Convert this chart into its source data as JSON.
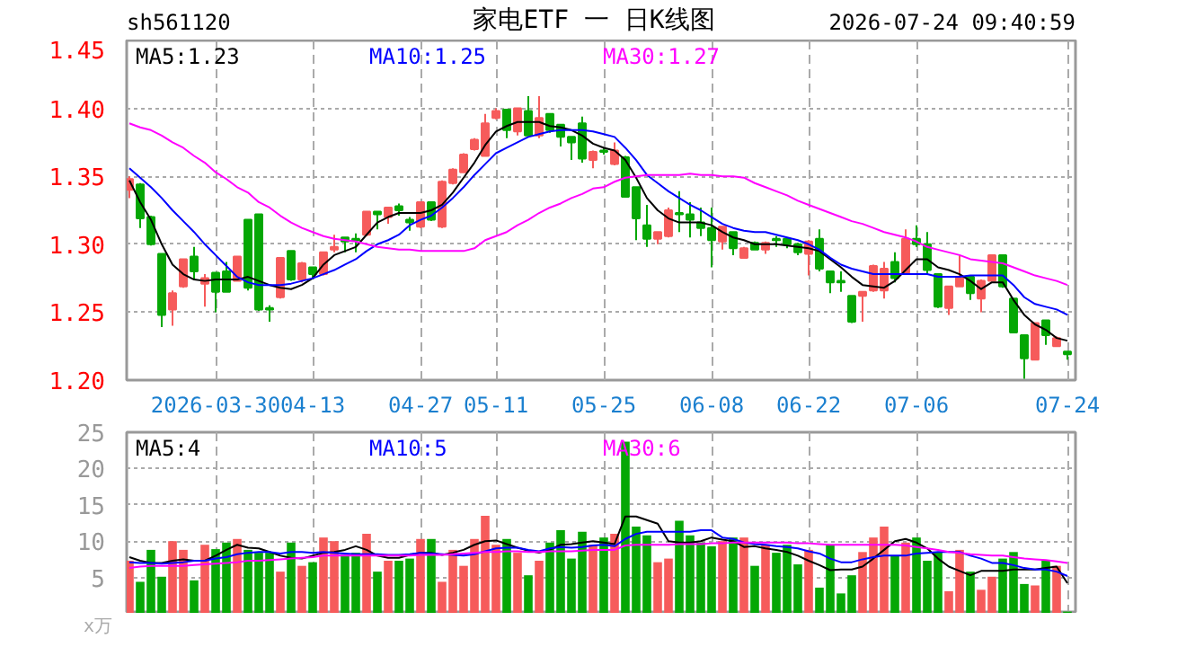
{
  "chart_data": [
    {
      "type": "candlestick",
      "title": "家电ETF 一 日K线图",
      "annotations": [
        "sh561120",
        "2026-07-24 09:40:59"
      ],
      "categories": [
        null,
        null,
        null,
        null,
        null,
        null,
        null,
        null,
        "2026-03-30",
        null,
        null,
        null,
        null,
        null,
        null,
        null,
        null,
        "04-13",
        null,
        null,
        null,
        null,
        null,
        null,
        null,
        null,
        null,
        "04-27",
        null,
        null,
        null,
        null,
        null,
        null,
        "05-11",
        null,
        null,
        null,
        null,
        null,
        null,
        null,
        null,
        null,
        "05-25",
        null,
        null,
        null,
        null,
        null,
        null,
        null,
        null,
        null,
        "06-08",
        null,
        null,
        null,
        null,
        null,
        null,
        null,
        null,
        "06-22",
        null,
        null,
        null,
        null,
        null,
        null,
        null,
        null,
        null,
        "07-06",
        null,
        null,
        null,
        null,
        null,
        null,
        null,
        null,
        null,
        null,
        null,
        null,
        null,
        "07-24"
      ],
      "ohlc": [
        [
          1.34,
          1.35,
          1.334,
          1.348
        ],
        [
          1.344,
          1.345,
          1.312,
          1.319
        ],
        [
          1.32,
          1.321,
          1.299,
          1.3
        ],
        [
          1.293,
          1.293,
          1.239,
          1.248
        ],
        [
          1.252,
          1.266,
          1.24,
          1.264
        ],
        [
          1.269,
          1.289,
          1.268,
          1.289
        ],
        [
          1.291,
          1.298,
          1.274,
          1.28
        ],
        [
          1.271,
          1.278,
          1.254,
          1.275
        ],
        [
          1.279,
          1.279,
          1.25,
          1.265
        ],
        [
          1.28,
          1.287,
          1.265,
          1.265
        ],
        [
          1.273,
          1.291,
          1.273,
          1.291
        ],
        [
          1.318,
          1.318,
          1.266,
          1.268
        ],
        [
          1.322,
          1.322,
          1.251,
          1.252
        ],
        [
          1.253,
          1.255,
          1.243,
          1.252
        ],
        [
          1.261,
          1.29,
          1.26,
          1.29
        ],
        [
          1.295,
          1.295,
          1.273,
          1.274
        ],
        [
          1.274,
          1.287,
          1.272,
          1.286
        ],
        [
          1.283,
          1.283,
          1.274,
          1.278
        ],
        [
          1.278,
          1.294,
          1.277,
          1.294
        ],
        [
          1.296,
          1.307,
          1.294,
          1.298
        ],
        [
          1.305,
          1.305,
          1.294,
          1.302
        ],
        [
          1.304,
          1.308,
          1.294,
          1.303
        ],
        [
          1.307,
          1.324,
          1.306,
          1.324
        ],
        [
          1.324,
          1.324,
          1.311,
          1.322
        ],
        [
          1.32,
          1.327,
          1.315,
          1.327
        ],
        [
          1.328,
          1.33,
          1.321,
          1.325
        ],
        [
          1.318,
          1.32,
          1.31,
          1.316
        ],
        [
          1.313,
          1.331,
          1.312,
          1.331
        ],
        [
          1.331,
          1.331,
          1.317,
          1.318
        ],
        [
          1.313,
          1.347,
          1.312,
          1.346
        ],
        [
          1.345,
          1.356,
          1.344,
          1.355
        ],
        [
          1.353,
          1.367,
          1.353,
          1.366
        ],
        [
          1.37,
          1.378,
          1.369,
          1.377
        ],
        [
          1.365,
          1.396,
          1.365,
          1.389
        ],
        [
          1.393,
          1.4,
          1.392,
          1.398
        ],
        [
          1.399,
          1.399,
          1.378,
          1.384
        ],
        [
          1.383,
          1.4,
          1.38,
          1.4
        ],
        [
          1.398,
          1.409,
          1.38,
          1.38
        ],
        [
          1.38,
          1.409,
          1.378,
          1.393
        ],
        [
          1.396,
          1.396,
          1.382,
          1.384
        ],
        [
          1.388,
          1.388,
          1.372,
          1.379
        ],
        [
          1.379,
          1.379,
          1.362,
          1.375
        ],
        [
          1.389,
          1.394,
          1.36,
          1.363
        ],
        [
          1.362,
          1.369,
          1.356,
          1.368
        ],
        [
          1.369,
          1.371,
          1.366,
          1.368
        ],
        [
          1.359,
          1.375,
          1.358,
          1.369
        ],
        [
          1.364,
          1.365,
          1.335,
          1.335
        ],
        [
          1.342,
          1.342,
          1.303,
          1.319
        ],
        [
          1.314,
          1.329,
          1.298,
          1.304
        ],
        [
          1.304,
          1.309,
          1.3,
          1.309
        ],
        [
          1.306,
          1.327,
          1.305,
          1.325
        ],
        [
          1.323,
          1.339,
          1.309,
          1.322
        ],
        [
          1.322,
          1.331,
          1.305,
          1.318
        ],
        [
          1.316,
          1.327,
          1.306,
          1.312
        ],
        [
          1.312,
          1.327,
          1.283,
          1.303
        ],
        [
          1.302,
          1.313,
          1.296,
          1.313
        ],
        [
          1.309,
          1.309,
          1.292,
          1.297
        ],
        [
          1.29,
          1.298,
          1.29,
          1.297
        ],
        [
          1.301,
          1.302,
          1.296,
          1.296
        ],
        [
          1.296,
          1.302,
          1.293,
          1.301
        ],
        [
          1.304,
          1.306,
          1.298,
          1.303
        ],
        [
          1.304,
          1.305,
          1.297,
          1.3
        ],
        [
          1.3,
          1.301,
          1.292,
          1.294
        ],
        [
          1.293,
          1.303,
          1.277,
          1.302
        ],
        [
          1.304,
          1.311,
          1.28,
          1.282
        ],
        [
          1.28,
          1.28,
          1.264,
          1.272
        ],
        [
          1.273,
          1.28,
          1.265,
          1.272
        ],
        [
          1.262,
          1.262,
          1.242,
          1.243
        ],
        [
          1.262,
          1.265,
          1.243,
          1.265
        ],
        [
          1.266,
          1.285,
          1.265,
          1.284
        ],
        [
          1.266,
          1.287,
          1.26,
          1.282
        ],
        [
          1.287,
          1.294,
          1.272,
          1.275
        ],
        [
          1.279,
          1.311,
          1.279,
          1.304
        ],
        [
          1.304,
          1.314,
          1.298,
          1.3
        ],
        [
          1.3,
          1.309,
          1.278,
          1.281
        ],
        [
          1.278,
          1.278,
          1.253,
          1.254
        ],
        [
          1.253,
          1.269,
          1.248,
          1.269
        ],
        [
          1.269,
          1.292,
          1.269,
          1.276
        ],
        [
          1.276,
          1.276,
          1.259,
          1.264
        ],
        [
          1.26,
          1.274,
          1.25,
          1.273
        ],
        [
          1.273,
          1.292,
          1.273,
          1.292
        ],
        [
          1.292,
          1.292,
          1.268,
          1.269
        ],
        [
          1.26,
          1.26,
          1.235,
          1.235
        ],
        [
          1.233,
          1.233,
          1.201,
          1.216
        ],
        [
          1.215,
          1.242,
          1.215,
          1.242
        ],
        [
          1.244,
          1.244,
          1.226,
          1.233
        ],
        [
          1.225,
          1.232,
          1.225,
          1.231
        ],
        [
          1.221,
          1.221,
          1.215,
          1.219
        ]
      ],
      "colors": [
        "#f65b5b",
        "#05a705",
        "#05a705",
        "#05a705",
        "#f65b5b",
        "#f65b5b",
        "#05a705",
        "#f65b5b",
        "#05a705",
        "#05a705",
        "#f65b5b",
        "#05a705",
        "#05a705",
        "#05a705",
        "#f65b5b",
        "#05a705",
        "#f65b5b",
        "#05a705",
        "#f65b5b",
        "#f65b5b",
        "#05a705",
        "#05a705",
        "#f65b5b",
        "#05a705",
        "#f65b5b",
        "#05a705",
        "#05a705",
        "#f65b5b",
        "#05a705",
        "#f65b5b",
        "#f65b5b",
        "#f65b5b",
        "#f65b5b",
        "#f65b5b",
        "#f65b5b",
        "#05a705",
        "#f65b5b",
        "#05a705",
        "#f65b5b",
        "#05a705",
        "#05a705",
        "#05a705",
        "#05a705",
        "#f65b5b",
        "#05a705",
        "#f65b5b",
        "#05a705",
        "#05a705",
        "#05a705",
        "#f65b5b",
        "#f65b5b",
        "#05a705",
        "#05a705",
        "#05a705",
        "#05a705",
        "#f65b5b",
        "#05a705",
        "#f65b5b",
        "#05a705",
        "#f65b5b",
        "#05a705",
        "#05a705",
        "#05a705",
        "#f65b5b",
        "#05a705",
        "#05a705",
        "#05a705",
        "#05a705",
        "#f65b5b",
        "#f65b5b",
        "#f65b5b",
        "#05a705",
        "#f65b5b",
        "#05a705",
        "#05a705",
        "#05a705",
        "#f65b5b",
        "#f65b5b",
        "#05a705",
        "#f65b5b",
        "#f65b5b",
        "#05a705",
        "#05a705",
        "#05a705",
        "#f65b5b",
        "#05a705",
        "#f65b5b",
        "#05a705"
      ],
      "series": [
        {
          "type": "line",
          "name": "MA5:1.23",
          "color": "#000000",
          "values": [
            1.347,
            1.331,
            1.318,
            1.3,
            1.285,
            1.278,
            1.274,
            1.273,
            1.274,
            1.274,
            1.274,
            1.276,
            1.273,
            1.27,
            1.268,
            1.267,
            1.27,
            1.275,
            1.285,
            1.292,
            1.295,
            1.298,
            1.307,
            1.316,
            1.32,
            1.323,
            1.323,
            1.323,
            1.325,
            1.329,
            1.338,
            1.349,
            1.36,
            1.373,
            1.383,
            1.387,
            1.39,
            1.39,
            1.39,
            1.387,
            1.386,
            1.384,
            1.38,
            1.374,
            1.371,
            1.369,
            1.362,
            1.349,
            1.334,
            1.325,
            1.319,
            1.316,
            1.316,
            1.316,
            1.314,
            1.309,
            1.305,
            1.303,
            1.3,
            1.3,
            1.3,
            1.299,
            1.298,
            1.297,
            1.295,
            1.289,
            1.283,
            1.276,
            1.27,
            1.269,
            1.268,
            1.273,
            1.281,
            1.289,
            1.289,
            1.283,
            1.281,
            1.278,
            1.273,
            1.267,
            1.272,
            1.272,
            1.259,
            1.248,
            1.241,
            1.237,
            1.231,
            1.229
          ]
        },
        {
          "type": "line",
          "name": "MA10:1.25",
          "color": "#0000ff",
          "values": [
            1.356,
            1.349,
            1.342,
            1.334,
            1.325,
            1.317,
            1.309,
            1.3,
            1.292,
            1.284,
            1.276,
            1.272,
            1.27,
            1.27,
            1.27,
            1.271,
            1.273,
            1.275,
            1.278,
            1.281,
            1.285,
            1.289,
            1.295,
            1.3,
            1.303,
            1.307,
            1.314,
            1.318,
            1.321,
            1.327,
            1.334,
            1.342,
            1.351,
            1.359,
            1.367,
            1.371,
            1.375,
            1.379,
            1.381,
            1.383,
            1.384,
            1.384,
            1.384,
            1.383,
            1.381,
            1.379,
            1.371,
            1.362,
            1.351,
            1.345,
            1.339,
            1.334,
            1.329,
            1.325,
            1.32,
            1.315,
            1.312,
            1.31,
            1.309,
            1.309,
            1.307,
            1.305,
            1.303,
            1.3,
            1.296,
            1.29,
            1.285,
            1.282,
            1.28,
            1.278,
            1.278,
            1.278,
            1.278,
            1.278,
            1.278,
            1.276,
            1.276,
            1.276,
            1.277,
            1.277,
            1.277,
            1.277,
            1.27,
            1.261,
            1.256,
            1.254,
            1.252,
            1.248
          ]
        },
        {
          "type": "line",
          "name": "MA30:1.27",
          "color": "#ff00ff",
          "values": [
            1.389,
            1.386,
            1.384,
            1.38,
            1.375,
            1.371,
            1.365,
            1.36,
            1.353,
            1.348,
            1.342,
            1.338,
            1.331,
            1.327,
            1.321,
            1.316,
            1.312,
            1.309,
            1.306,
            1.304,
            1.303,
            1.302,
            1.3,
            1.298,
            1.297,
            1.296,
            1.296,
            1.295,
            1.295,
            1.295,
            1.295,
            1.295,
            1.297,
            1.303,
            1.306,
            1.309,
            1.314,
            1.318,
            1.323,
            1.327,
            1.33,
            1.334,
            1.337,
            1.341,
            1.342,
            1.346,
            1.349,
            1.35,
            1.351,
            1.351,
            1.351,
            1.351,
            1.352,
            1.351,
            1.351,
            1.35,
            1.35,
            1.349,
            1.345,
            1.342,
            1.339,
            1.336,
            1.332,
            1.329,
            1.326,
            1.323,
            1.32,
            1.317,
            1.315,
            1.312,
            1.309,
            1.307,
            1.305,
            1.302,
            1.298,
            1.296,
            1.294,
            1.292,
            1.289,
            1.288,
            1.287,
            1.286,
            1.283,
            1.28,
            1.277,
            1.275,
            1.273,
            1.27
          ]
        }
      ],
      "ylim": [
        1.2,
        1.45
      ],
      "yticks": [
        {
          "value": 1.2,
          "label": "1.20"
        },
        1.25,
        {
          "value": 1.3,
          "label": "1.30"
        },
        1.35,
        {
          "value": 1.4,
          "label": "1.40"
        },
        1.45
      ],
      "grid": true,
      "legend": "top left"
    },
    {
      "type": "bar",
      "annotations": [
        "x万"
      ],
      "categories": [
        null,
        null,
        null,
        null,
        null,
        null,
        null,
        null,
        null,
        null,
        null,
        null,
        null,
        null,
        null,
        null,
        null,
        null,
        null,
        null,
        null,
        null,
        null,
        null,
        null,
        null,
        null,
        null,
        null,
        null,
        null,
        null,
        null,
        null,
        null,
        null,
        null,
        null,
        null,
        null,
        null,
        null,
        null,
        null,
        null,
        null,
        null,
        null,
        null,
        null,
        null,
        null,
        null,
        null,
        null,
        null,
        null,
        null,
        null,
        null,
        null,
        null,
        null,
        null,
        null,
        null,
        null,
        null,
        null,
        null,
        null,
        null,
        null,
        null,
        null,
        null,
        null,
        null,
        null,
        null,
        null,
        null,
        null,
        null,
        null,
        null,
        null,
        null
      ],
      "series": [
        {
          "type": "bar",
          "values": [
            7.3,
            4.4,
            8.8,
            5.1,
            10.0,
            8.8,
            4.6,
            9.5,
            8.9,
            9.8,
            10.3,
            8.8,
            8.4,
            8.4,
            5.8,
            9.8,
            6.6,
            7.1,
            10.5,
            10.0,
            8.1,
            8.4,
            11.0,
            5.8,
            7.3,
            7.3,
            7.6,
            10.3,
            10.3,
            4.4,
            8.8,
            6.6,
            10.3,
            13.5,
            9.5,
            10.3,
            8.4,
            5.3,
            7.3,
            9.8,
            11.5,
            7.6,
            11.3,
            9.5,
            10.5,
            11.0,
            23.7,
            12.0,
            10.8,
            7.1,
            7.6,
            12.8,
            10.8,
            9.8,
            9.3,
            10.0,
            10.5,
            10.5,
            6.6,
            9.5,
            8.4,
            9.5,
            6.8,
            8.8,
            3.6,
            9.5,
            2.8,
            5.3,
            8.5,
            10.5,
            12.0,
            8.0,
            9.8,
            10.5,
            7.3,
            8.5,
            3.1,
            8.8,
            5.8,
            3.3,
            5.1,
            7.6,
            8.5,
            4.1,
            3.9,
            7.3,
            6.6,
            0.3
          ],
          "colors": [
            "#f65b5b",
            "#05a705",
            "#05a705",
            "#05a705",
            "#f65b5b",
            "#f65b5b",
            "#05a705",
            "#f65b5b",
            "#05a705",
            "#05a705",
            "#f65b5b",
            "#05a705",
            "#05a705",
            "#05a705",
            "#f65b5b",
            "#05a705",
            "#f65b5b",
            "#05a705",
            "#f65b5b",
            "#f65b5b",
            "#05a705",
            "#05a705",
            "#f65b5b",
            "#05a705",
            "#f65b5b",
            "#05a705",
            "#05a705",
            "#f65b5b",
            "#05a705",
            "#f65b5b",
            "#f65b5b",
            "#f65b5b",
            "#f65b5b",
            "#f65b5b",
            "#f65b5b",
            "#05a705",
            "#f65b5b",
            "#05a705",
            "#f65b5b",
            "#05a705",
            "#05a705",
            "#05a705",
            "#05a705",
            "#f65b5b",
            "#05a705",
            "#f65b5b",
            "#05a705",
            "#05a705",
            "#05a705",
            "#f65b5b",
            "#f65b5b",
            "#05a705",
            "#05a705",
            "#05a705",
            "#05a705",
            "#f65b5b",
            "#05a705",
            "#f65b5b",
            "#05a705",
            "#f65b5b",
            "#05a705",
            "#05a705",
            "#05a705",
            "#f65b5b",
            "#05a705",
            "#05a705",
            "#05a705",
            "#05a705",
            "#f65b5b",
            "#f65b5b",
            "#f65b5b",
            "#05a705",
            "#f65b5b",
            "#05a705",
            "#05a705",
            "#05a705",
            "#f65b5b",
            "#f65b5b",
            "#05a705",
            "#f65b5b",
            "#f65b5b",
            "#05a705",
            "#05a705",
            "#05a705",
            "#f65b5b",
            "#05a705",
            "#f65b5b",
            "#05a705"
          ]
        },
        {
          "type": "line",
          "name": "MA5:4",
          "color": "#000000",
          "values": [
            7.8,
            7.3,
            7.0,
            7.0,
            7.3,
            7.5,
            7.3,
            7.3,
            8.0,
            8.8,
            9.5,
            9.1,
            9.0,
            8.5,
            8.0,
            7.7,
            7.6,
            8.0,
            8.4,
            8.5,
            8.8,
            9.3,
            8.8,
            8.0,
            7.7,
            7.7,
            8.1,
            8.4,
            8.4,
            8.1,
            8.4,
            8.8,
            9.5,
            10.0,
            10.1,
            9.6,
            9.1,
            8.7,
            8.4,
            8.8,
            9.5,
            9.6,
            9.8,
            10.0,
            9.8,
            9.6,
            13.4,
            13.4,
            12.9,
            12.4,
            10.0,
            9.8,
            9.8,
            10.0,
            10.5,
            10.2,
            10.0,
            9.2,
            9.3,
            9.0,
            8.8,
            8.5,
            8.0,
            7.3,
            6.7,
            6.0,
            6.1,
            6.1,
            6.5,
            7.6,
            8.8,
            10.0,
            10.3,
            9.8,
            9.0,
            7.6,
            6.5,
            5.9,
            5.3,
            5.9,
            5.9,
            5.9,
            6.1,
            6.1,
            6.1,
            6.3,
            6.5,
            4.2
          ]
        },
        {
          "type": "line",
          "name": "MA10:5",
          "color": "#0000ff",
          "values": [
            7.1,
            7.0,
            7.0,
            6.9,
            7.0,
            7.1,
            7.3,
            7.3,
            7.6,
            7.8,
            8.2,
            8.4,
            8.5,
            8.5,
            8.3,
            8.5,
            8.5,
            8.4,
            8.5,
            8.4,
            8.3,
            8.2,
            8.2,
            8.2,
            8.1,
            8.1,
            8.2,
            8.4,
            8.3,
            8.2,
            8.1,
            8.0,
            8.2,
            8.6,
            9.0,
            9.1,
            9.1,
            8.8,
            8.6,
            9.0,
            9.2,
            9.1,
            9.2,
            9.4,
            9.5,
            9.3,
            10.3,
            11.0,
            11.3,
            11.3,
            11.3,
            11.3,
            11.3,
            11.5,
            11.5,
            10.5,
            10.3,
            9.8,
            9.6,
            9.5,
            9.3,
            9.2,
            9.0,
            8.6,
            8.3,
            7.6,
            7.1,
            7.1,
            7.5,
            7.8,
            8.0,
            8.0,
            8.0,
            8.3,
            8.4,
            8.5,
            8.5,
            8.5,
            8.0,
            7.6,
            7.0,
            7.0,
            6.7,
            6.3,
            6.1,
            6.1,
            5.8,
            5.2
          ]
        },
        {
          "type": "line",
          "name": "MA30:6",
          "color": "#ff00ff",
          "values": [
            6.3,
            6.5,
            6.6,
            6.6,
            6.6,
            6.6,
            6.7,
            6.8,
            6.9,
            7.0,
            7.1,
            7.3,
            7.3,
            7.4,
            7.5,
            7.6,
            7.7,
            7.8,
            8.0,
            8.0,
            8.0,
            8.0,
            8.0,
            8.0,
            8.0,
            8.0,
            8.0,
            8.1,
            8.1,
            8.1,
            8.2,
            8.3,
            8.4,
            8.5,
            8.5,
            8.6,
            8.6,
            8.5,
            8.5,
            8.6,
            8.6,
            8.6,
            8.7,
            8.8,
            8.8,
            8.8,
            9.4,
            9.5,
            9.5,
            9.5,
            9.5,
            9.6,
            9.6,
            9.6,
            9.7,
            9.7,
            9.8,
            9.8,
            9.8,
            9.8,
            9.8,
            9.8,
            9.7,
            9.7,
            9.6,
            9.5,
            9.5,
            9.5,
            9.5,
            9.5,
            9.5,
            9.5,
            9.4,
            9.2,
            9.0,
            8.8,
            8.5,
            8.4,
            8.2,
            8.1,
            8.0,
            8.0,
            7.8,
            7.6,
            7.5,
            7.4,
            7.2,
            7.0
          ]
        }
      ],
      "ylim": [
        0,
        25
      ],
      "yticks": [
        5,
        10,
        15,
        20,
        25
      ],
      "tick_labels": "y",
      "grid": true,
      "legend": "top left"
    }
  ]
}
